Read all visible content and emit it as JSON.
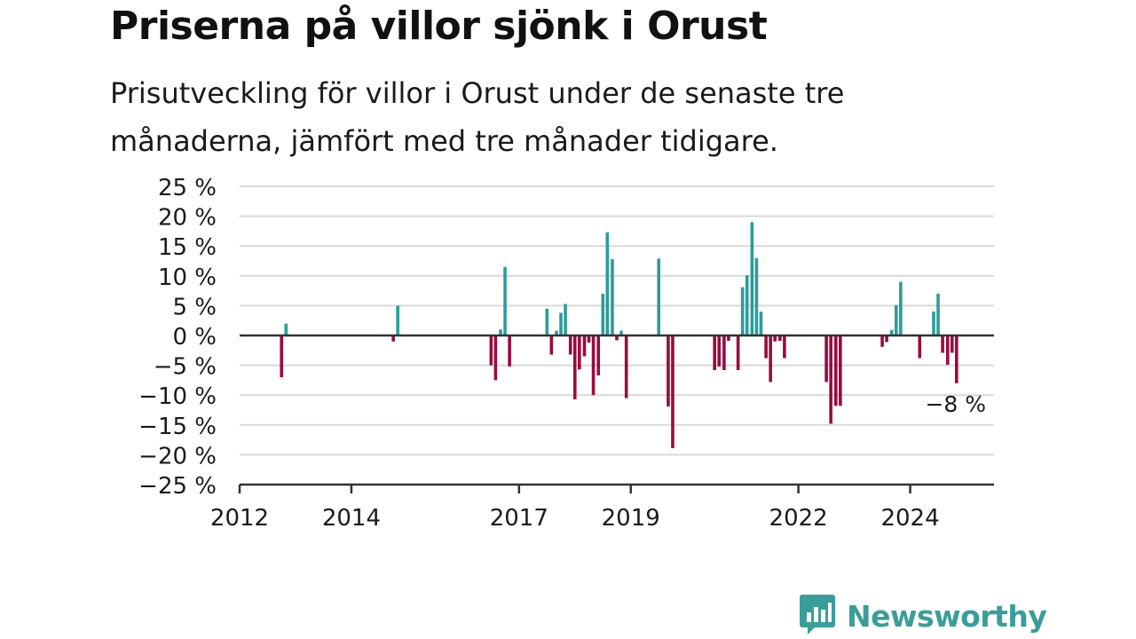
{
  "header": {
    "title": "Priserna på villor sjönk i Orust",
    "subtitle": "Prisutveckling för villor i Orust under de senaste tre månaderna, jämfört med tre månader tidigare."
  },
  "chart_data": {
    "type": "bar",
    "title": "Priserna på villor sjönk i Orust",
    "subtitle": "Prisutveckling för villor i Orust under de senaste tre månaderna, jämfört med tre månader tidigare.",
    "xlabel": "",
    "ylabel": "",
    "ylim": [
      -25,
      25
    ],
    "y_ticks": [
      25,
      20,
      15,
      10,
      5,
      0,
      -5,
      -10,
      -15,
      -20,
      -25
    ],
    "y_tick_labels": [
      "25 %",
      "20 %",
      "15 %",
      "10 %",
      "5 %",
      "0 %",
      "−5 %",
      "−10 %",
      "−15 %",
      "−20 %",
      "−25 %"
    ],
    "x_ticks": [
      2012,
      2014,
      2017,
      2019,
      2022,
      2024
    ],
    "x_tick_labels": [
      "2012",
      "2014",
      "2017",
      "2019",
      "2022",
      "2024"
    ],
    "xlim": [
      2012.0,
      2025.5
    ],
    "grid": true,
    "positive_color": "#2a9d9a",
    "negative_color": "#9b0a3f",
    "x": [
      2012.75,
      2012.83,
      2014.75,
      2014.83,
      2016.5,
      2016.58,
      2016.67,
      2016.75,
      2016.83,
      2017.5,
      2017.58,
      2017.67,
      2017.75,
      2017.83,
      2017.92,
      2018.0,
      2018.08,
      2018.17,
      2018.25,
      2018.33,
      2018.42,
      2018.5,
      2018.58,
      2018.67,
      2018.75,
      2018.83,
      2018.92,
      2019.5,
      2019.67,
      2019.75,
      2020.5,
      2020.58,
      2020.67,
      2020.75,
      2020.92,
      2021.0,
      2021.08,
      2021.17,
      2021.25,
      2021.33,
      2021.42,
      2021.5,
      2021.58,
      2021.67,
      2021.75,
      2021.83,
      2022.5,
      2022.58,
      2022.67,
      2022.75,
      2023.5,
      2023.58,
      2023.67,
      2023.75,
      2023.83,
      2024.17,
      2024.42,
      2024.5,
      2024.58,
      2024.67,
      2024.75,
      2024.83
    ],
    "values": [
      -7,
      2,
      -1,
      5,
      -5,
      -7.5,
      1,
      11.5,
      -5.2,
      4.5,
      -3.2,
      0.8,
      3.8,
      5.3,
      -3.2,
      -10.7,
      -5.7,
      -3.5,
      -1.2,
      -10,
      -6.7,
      7,
      17.3,
      12.8,
      -0.8,
      0.8,
      -10.5,
      12.9,
      -11.9,
      -18.9,
      -5.8,
      -5.2,
      -5.8,
      -0.9,
      -5.8,
      8.1,
      10.1,
      19,
      13,
      4,
      -3.8,
      -7.8,
      -1,
      -0.9,
      -3.8,
      0,
      -7.8,
      -14.8,
      -11.8,
      -11.8,
      -1.9,
      -1.1,
      0.9,
      5.1,
      9,
      -3.8,
      4,
      7,
      -2.9,
      -4.9,
      -2.9,
      -8
    ],
    "annotation": "−8 %"
  },
  "brand": {
    "name": "Newsworthy",
    "logo_icon": "bar-chart-speech-bubble-icon",
    "color": "#3a9d9a"
  }
}
